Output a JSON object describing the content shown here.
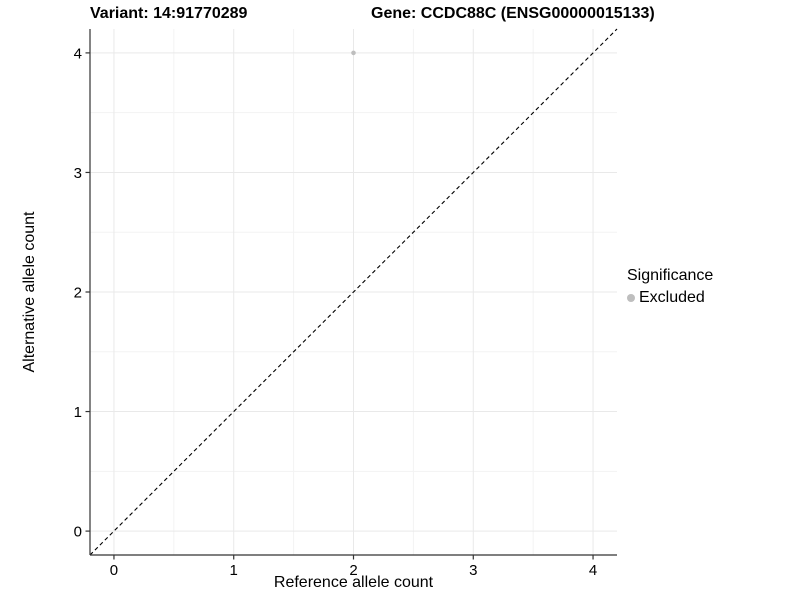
{
  "titles": {
    "variant": "Variant: 14:91770289",
    "gene": "Gene: CCDC88C (ENSG00000015133)"
  },
  "axes": {
    "x_label": "Reference allele count",
    "y_label": "Alternative allele count"
  },
  "legend": {
    "title": "Significance",
    "items": [
      {
        "label": "Excluded",
        "color": "#bebebe"
      }
    ]
  },
  "colors": {
    "background": "#ffffff",
    "axis_line": "#333333",
    "tick_mark": "#333333",
    "tick_label": "#000000",
    "grid_major": "#e9e9e9",
    "grid_minor": "#f3f3f3",
    "reference_line": "#000000",
    "point": "#bebebe"
  },
  "chart_data": {
    "type": "scatter",
    "title_left": "Variant: 14:91770289",
    "title_right": "Gene: CCDC88C (ENSG00000015133)",
    "xlabel": "Reference allele count",
    "ylabel": "Alternative allele count",
    "xlim": [
      -0.2,
      4.2
    ],
    "ylim": [
      -0.2,
      4.2
    ],
    "x_ticks": [
      0,
      1,
      2,
      3,
      4
    ],
    "y_ticks": [
      0,
      1,
      2,
      3,
      4
    ],
    "x_minor_ticks": [
      0.5,
      1.5,
      2.5,
      3.5
    ],
    "y_minor_ticks": [
      0.5,
      1.5,
      2.5,
      3.5
    ],
    "grid": true,
    "legend_position": "right",
    "series": [
      {
        "name": "Excluded",
        "color": "#bebebe",
        "points": [
          {
            "x": 2,
            "y": 4
          }
        ]
      }
    ],
    "reference_line": {
      "type": "identity",
      "slope": 1,
      "intercept": 0,
      "style": "dashed",
      "color": "#000000"
    }
  }
}
